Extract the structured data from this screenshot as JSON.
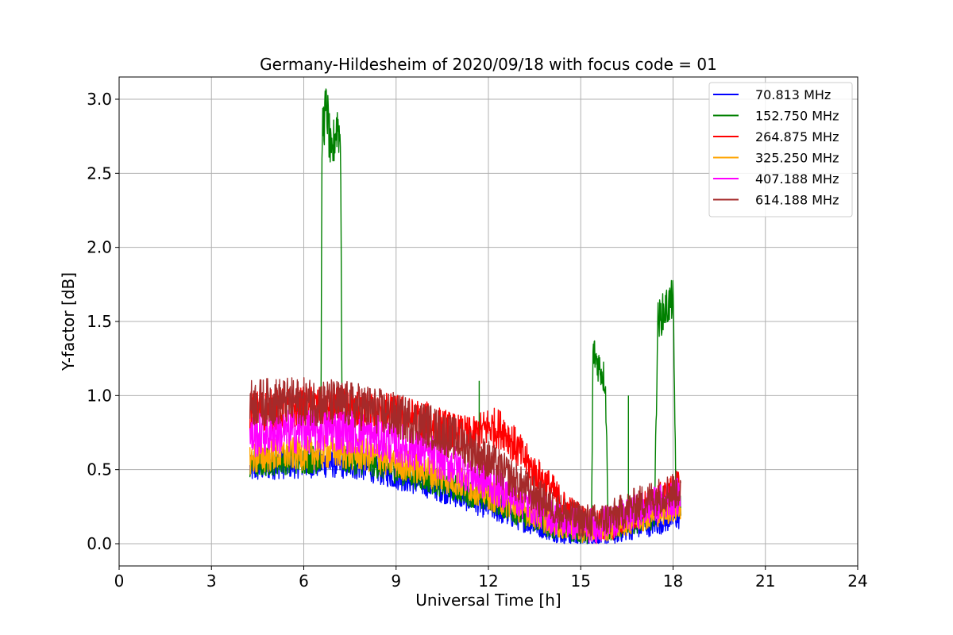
{
  "chart_data": {
    "type": "line",
    "title": "Germany-Hildesheim of 2020/09/18 with focus code = 01",
    "xlabel": "Universal Time [h]",
    "ylabel": "Y-factor [dB]",
    "xlim": [
      0,
      24
    ],
    "ylim": [
      -0.15,
      3.15
    ],
    "xticks": [
      0,
      3,
      6,
      9,
      12,
      15,
      18,
      21,
      24
    ],
    "xtick_labels": [
      "0",
      "3",
      "6",
      "9",
      "12",
      "15",
      "18",
      "21",
      "24"
    ],
    "yticks": [
      0.0,
      0.5,
      1.0,
      1.5,
      2.0,
      2.5,
      3.0
    ],
    "ytick_labels": [
      "0.0",
      "0.5",
      "1.0",
      "1.5",
      "2.0",
      "2.5",
      "3.0"
    ],
    "grid": true,
    "legend_position": "top-right",
    "series": [
      {
        "name": " 70.813 MHz",
        "color": "#0000ff",
        "noise": 0.035,
        "x": [
          4.25,
          5,
          6,
          7,
          8,
          9,
          10,
          11,
          12,
          13,
          14,
          14.5,
          15,
          15.5,
          16,
          16.5,
          17,
          17.5,
          18,
          18.25
        ],
        "y": [
          0.5,
          0.53,
          0.54,
          0.54,
          0.52,
          0.46,
          0.4,
          0.33,
          0.25,
          0.17,
          0.1,
          0.07,
          0.05,
          0.04,
          0.07,
          0.1,
          0.12,
          0.14,
          0.17,
          0.18
        ]
      },
      {
        "name": "152.750 MHz",
        "color": "#008000",
        "noise": 0.035,
        "x": [
          4.25,
          5,
          6,
          6.55,
          6.6,
          6.75,
          6.9,
          7.0,
          7.1,
          7.2,
          7.25,
          8,
          9,
          10,
          11,
          11.9,
          12,
          12.1,
          13,
          14,
          14.5,
          15,
          15.35,
          15.4,
          15.6,
          15.8,
          15.9,
          16,
          16.5,
          17,
          17.4,
          17.5,
          17.8,
          18.0,
          18.1,
          18.25
        ],
        "y": [
          0.53,
          0.56,
          0.57,
          0.57,
          2.8,
          2.95,
          2.55,
          2.75,
          2.85,
          2.7,
          0.57,
          0.56,
          0.5,
          0.44,
          0.37,
          0.3,
          0.33,
          0.3,
          0.2,
          0.12,
          0.1,
          0.08,
          0.08,
          1.3,
          1.2,
          1.1,
          0.1,
          0.1,
          0.14,
          0.16,
          0.18,
          1.5,
          1.6,
          1.65,
          0.3,
          0.25
        ],
        "peaks": [
          [
            11.7,
            1.1
          ],
          [
            16.55,
            1.0
          ]
        ]
      },
      {
        "name": "264.875 MHz",
        "color": "#ff0000",
        "noise": 0.045,
        "x": [
          4.25,
          5,
          6,
          7,
          8,
          9,
          10,
          11,
          11.5,
          12,
          12.5,
          13,
          13.5,
          14,
          14.5,
          15,
          15.5,
          16,
          16.5,
          17,
          17.5,
          18,
          18.25
        ],
        "y": [
          0.9,
          0.9,
          0.92,
          0.92,
          0.9,
          0.87,
          0.82,
          0.74,
          0.72,
          0.79,
          0.77,
          0.62,
          0.48,
          0.38,
          0.24,
          0.17,
          0.12,
          0.12,
          0.18,
          0.24,
          0.29,
          0.36,
          0.38
        ]
      },
      {
        "name": "325.250 MHz",
        "color": "#ffa500",
        "noise": 0.04,
        "x": [
          4.25,
          5,
          6,
          7,
          8,
          9,
          10,
          11,
          12,
          13,
          14,
          14.5,
          15,
          15.5,
          16,
          16.5,
          17,
          17.5,
          18,
          18.25
        ],
        "y": [
          0.57,
          0.6,
          0.61,
          0.62,
          0.6,
          0.55,
          0.49,
          0.42,
          0.33,
          0.24,
          0.15,
          0.12,
          0.1,
          0.09,
          0.12,
          0.15,
          0.18,
          0.21,
          0.24,
          0.25
        ]
      },
      {
        "name": "407.188 MHz",
        "color": "#ff00ff",
        "noise": 0.05,
        "x": [
          4.25,
          5,
          6,
          7,
          8,
          9,
          10,
          11,
          12,
          13,
          14,
          14.5,
          15,
          15.5,
          16,
          16.5,
          17,
          17.5,
          18,
          18.25
        ],
        "y": [
          0.72,
          0.75,
          0.76,
          0.77,
          0.74,
          0.68,
          0.61,
          0.52,
          0.41,
          0.3,
          0.19,
          0.15,
          0.13,
          0.12,
          0.15,
          0.19,
          0.23,
          0.27,
          0.31,
          0.32
        ]
      },
      {
        "name": "614.188 MHz",
        "color": "#a52a2a",
        "noise": 0.05,
        "x": [
          4.25,
          5,
          6,
          7,
          8,
          9,
          10,
          11,
          12,
          13,
          14,
          14.5,
          15,
          15.5,
          16,
          16.5,
          17,
          17.5,
          18,
          18.25
        ],
        "y": [
          0.95,
          0.96,
          0.96,
          0.95,
          0.92,
          0.86,
          0.8,
          0.7,
          0.56,
          0.4,
          0.26,
          0.2,
          0.16,
          0.15,
          0.18,
          0.23,
          0.28,
          0.32,
          0.36,
          0.37
        ]
      }
    ]
  }
}
